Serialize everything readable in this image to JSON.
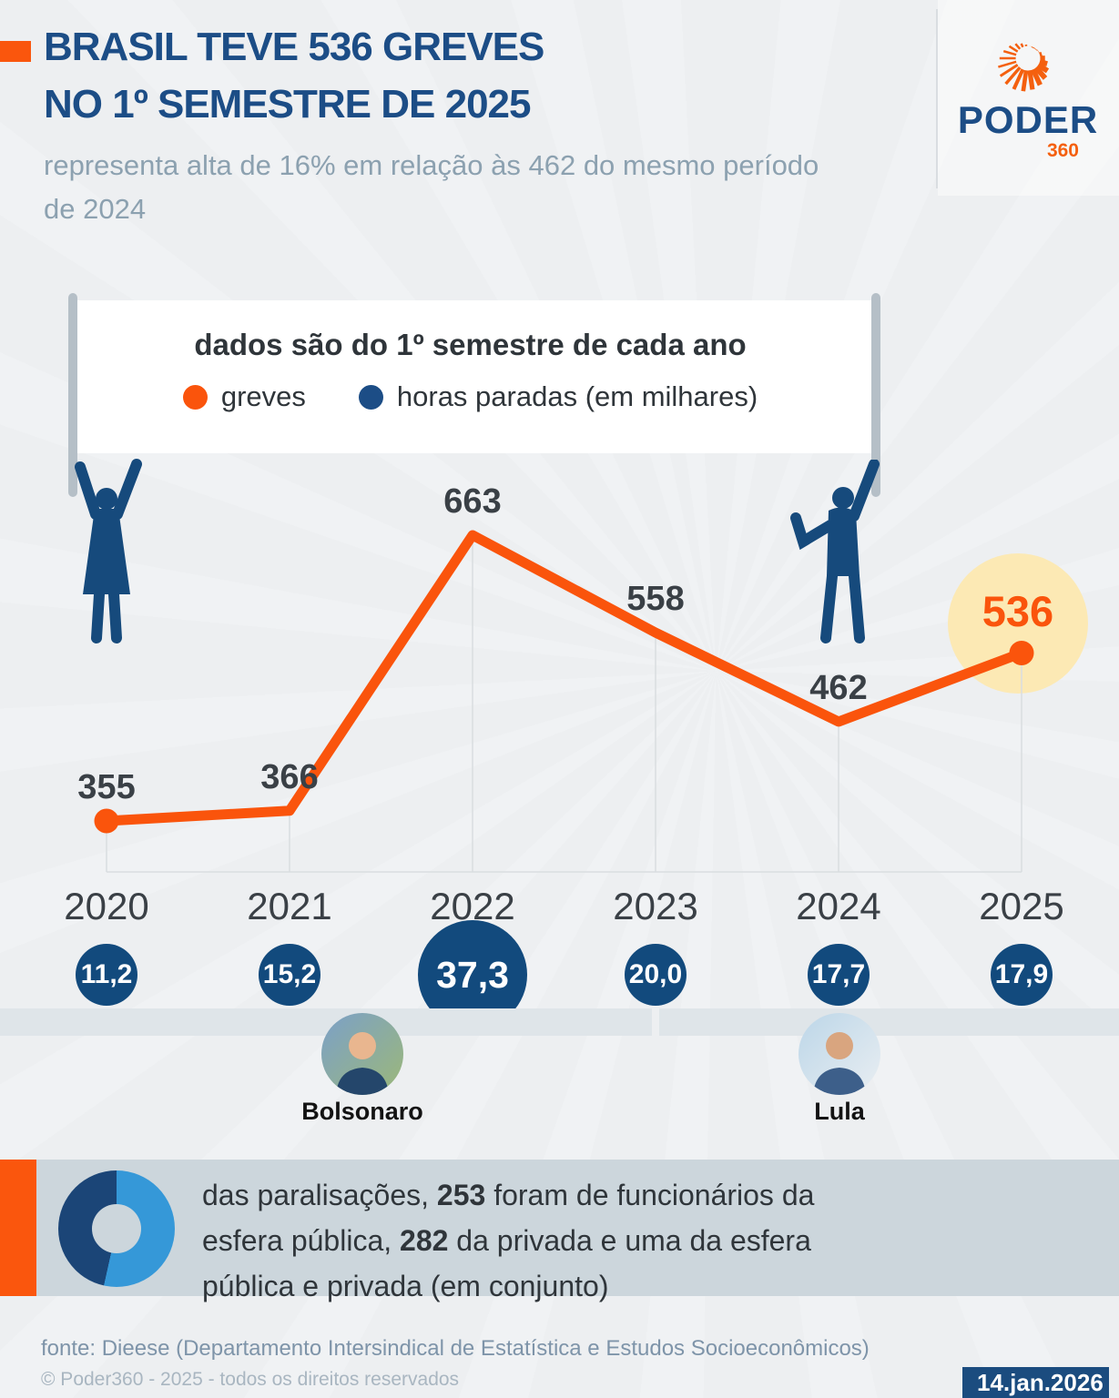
{
  "colors": {
    "orange": "#fa540c",
    "navy": "#1c4d86",
    "circle_navy": "#124a7d",
    "chart_label": "#3a4046",
    "highlight_bg": "#fce9b4",
    "donut_blue": "#3598d8",
    "donut_navy": "#1b4577"
  },
  "header": {
    "title": [
      "BRASIL TEVE 536 GREVES",
      "NO 1º SEMESTRE DE 2025"
    ],
    "subtitle": [
      "representa alta de 16% em relação às 462 do mesmo período",
      "de 2024"
    ],
    "logo": {
      "word": "PODER",
      "suffix": "360"
    }
  },
  "banner": {
    "heading": "dados são do 1º semestre de cada ano",
    "legend": [
      {
        "label": "greves",
        "color": "#fa540c"
      },
      {
        "label": "horas paradas (em milhares)",
        "color": "#1c4d86"
      }
    ]
  },
  "chart_data": {
    "type": "line",
    "x": [
      2020,
      2021,
      2022,
      2023,
      2024,
      2025
    ],
    "series": [
      {
        "name": "greves",
        "color": "#fa540c",
        "values": [
          355,
          366,
          663,
          558,
          462,
          536
        ]
      },
      {
        "name": "horas paradas (em milhares)",
        "color": "#124a7d",
        "values": [
          "11,2",
          "15,2",
          "37,3",
          "20,0",
          "17,7",
          "17,9"
        ]
      }
    ],
    "title": "dados são do 1º semestre de cada ano",
    "highlight": {
      "x": 2025,
      "value": 536
    },
    "ylim": [
      300,
      700
    ],
    "grid": "vertical-drop-lines-and-baseline",
    "legend_position": "top-banner"
  },
  "timeline": {
    "presidents": [
      {
        "name": "Bolsonaro"
      },
      {
        "name": "Lula"
      }
    ]
  },
  "callout": {
    "lines": [
      [
        {
          "t": "das paralisações, "
        },
        {
          "t": "253",
          "b": 1
        },
        {
          "t": " foram de funcionários da"
        }
      ],
      [
        {
          "t": "esfera pública, "
        },
        {
          "t": "282",
          "b": 1
        },
        {
          "t": " da privada e uma da esfera"
        }
      ],
      [
        {
          "t": "pública e privada (em conjunto)"
        }
      ]
    ]
  },
  "footer": {
    "source": "fonte: Dieese (Departamento Intersindical de Estatística e Estudos Socioeconômicos)",
    "copyright": "© Poder360 - 2025 - todos os direitos reservados",
    "date": "14.jan.2026"
  }
}
